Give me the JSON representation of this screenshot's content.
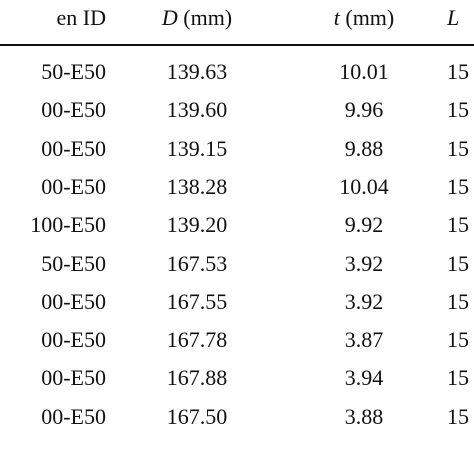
{
  "table": {
    "header": [
      {
        "symbol": "en ID"
      },
      {
        "symbol": "D",
        "unit": "(mm)"
      },
      {
        "symbol": "t",
        "unit": "(mm)"
      },
      {
        "symbol": "L"
      }
    ],
    "rows": [
      [
        "50-E50",
        "139.63",
        "10.01",
        "15"
      ],
      [
        "00-E50",
        "139.60",
        "9.96",
        "15"
      ],
      [
        "00-E50",
        "139.15",
        "9.88",
        "15"
      ],
      [
        "00-E50",
        "138.28",
        "10.04",
        "15"
      ],
      [
        "100-E50",
        "139.20",
        "9.92",
        "15"
      ],
      [
        "50-E50",
        "167.53",
        "3.92",
        "15"
      ],
      [
        "00-E50",
        "167.55",
        "3.92",
        "15"
      ],
      [
        "00-E50",
        "167.78",
        "3.87",
        "15"
      ],
      [
        "00-E50",
        "167.88",
        "3.94",
        "15"
      ],
      [
        "00-E50",
        "167.50",
        "3.88",
        "15"
      ]
    ]
  }
}
